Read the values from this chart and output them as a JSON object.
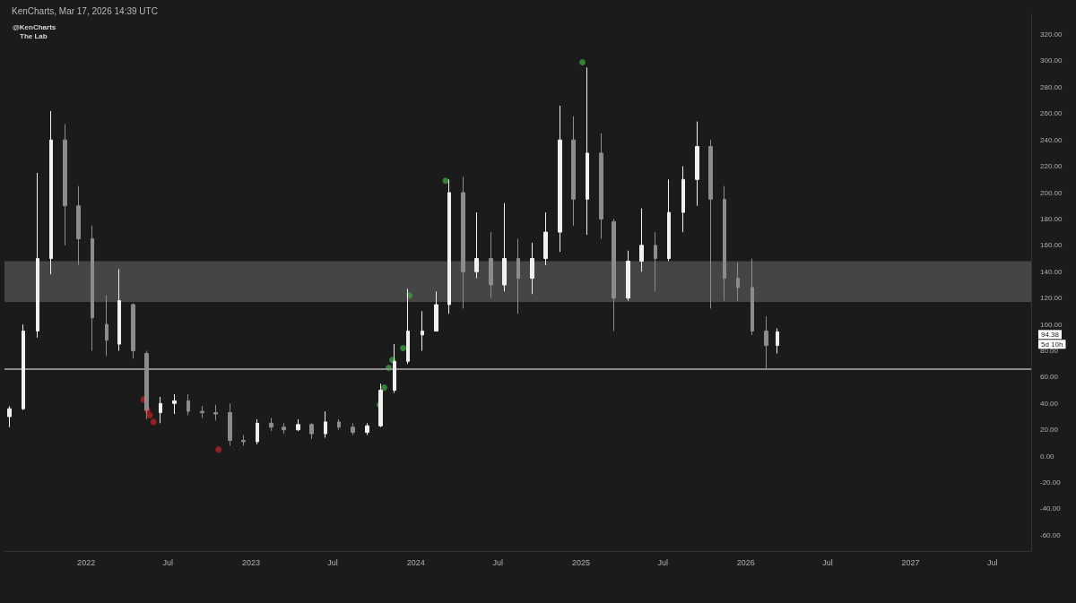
{
  "chart_data": {
    "type": "candlestick",
    "title": "KenCharts, Mar 17, 2026 14:39 UTC",
    "x": [
      "2021-07-15",
      "2021-08-15",
      "2021-09-15",
      "2021-10-15",
      "2021-11-15",
      "2021-12-15",
      "2022-01-15",
      "2022-02-15",
      "2022-03-15",
      "2022-04-15",
      "2022-05-15",
      "2022-06-15",
      "2022-07-15",
      "2022-08-15",
      "2022-09-15",
      "2022-10-15",
      "2022-11-15",
      "2022-12-15",
      "2023-01-15",
      "2023-02-15",
      "2023-03-15",
      "2023-04-15",
      "2023-05-15",
      "2023-06-15",
      "2023-07-15",
      "2023-08-15",
      "2023-09-15",
      "2023-10-15",
      "2023-11-15",
      "2023-12-15",
      "2024-01-15",
      "2024-02-15",
      "2024-03-15",
      "2024-04-15",
      "2024-05-15",
      "2024-06-15",
      "2024-07-15",
      "2024-08-15",
      "2024-09-15",
      "2024-10-15",
      "2024-11-15",
      "2024-12-15",
      "2025-01-15",
      "2025-02-15",
      "2025-03-15",
      "2025-04-15",
      "2025-05-15",
      "2025-06-15",
      "2025-07-15",
      "2025-08-15",
      "2025-09-15",
      "2025-10-15",
      "2025-11-15",
      "2025-12-15",
      "2026-01-15",
      "2026-02-15",
      "2026-03-12"
    ],
    "ohlc": [
      [
        30,
        38,
        22,
        36
      ],
      [
        36,
        100,
        35,
        95
      ],
      [
        95,
        215,
        90,
        150
      ],
      [
        150,
        262,
        138,
        240
      ],
      [
        240,
        252,
        160,
        190
      ],
      [
        190,
        205,
        145,
        165
      ],
      [
        165,
        175,
        80,
        105
      ],
      [
        100,
        122,
        76,
        88
      ],
      [
        85,
        142,
        80,
        118
      ],
      [
        115,
        116,
        74,
        80
      ],
      [
        78,
        80,
        28,
        35
      ],
      [
        33,
        45,
        25,
        40
      ],
      [
        40,
        47,
        32,
        42
      ],
      [
        42,
        47,
        31,
        34
      ],
      [
        34,
        38,
        29,
        33
      ],
      [
        33,
        39,
        27,
        32
      ],
      [
        33,
        40,
        8,
        12
      ],
      [
        12,
        16,
        8,
        11
      ],
      [
        11,
        28,
        9,
        25
      ],
      [
        25,
        29,
        19,
        22
      ],
      [
        22,
        25,
        17,
        20
      ],
      [
        20,
        28,
        19,
        24
      ],
      [
        24,
        25,
        13,
        17
      ],
      [
        17,
        34,
        14,
        26
      ],
      [
        26,
        28,
        20,
        22
      ],
      [
        22,
        25,
        16,
        18
      ],
      [
        18,
        25,
        16,
        23
      ],
      [
        23,
        55,
        22,
        50
      ],
      [
        50,
        85,
        48,
        72
      ],
      [
        72,
        127,
        70,
        95
      ],
      [
        92,
        110,
        80,
        95
      ],
      [
        95,
        125,
        95,
        115
      ],
      [
        115,
        210,
        108,
        200
      ],
      [
        200,
        212,
        112,
        140
      ],
      [
        140,
        185,
        135,
        150
      ],
      [
        150,
        170,
        120,
        130
      ],
      [
        130,
        192,
        125,
        150
      ],
      [
        150,
        165,
        108,
        135
      ],
      [
        135,
        162,
        123,
        150
      ],
      [
        150,
        185,
        145,
        170
      ],
      [
        170,
        266,
        155,
        240
      ],
      [
        240,
        258,
        175,
        195
      ],
      [
        195,
        295,
        168,
        230
      ],
      [
        230,
        245,
        165,
        180
      ],
      [
        178,
        180,
        95,
        120
      ],
      [
        120,
        156,
        118,
        148
      ],
      [
        148,
        188,
        140,
        160
      ],
      [
        160,
        170,
        125,
        150
      ],
      [
        150,
        210,
        148,
        185
      ],
      [
        185,
        220,
        170,
        210
      ],
      [
        210,
        254,
        190,
        235
      ],
      [
        235,
        240,
        112,
        195
      ],
      [
        195,
        205,
        118,
        135
      ],
      [
        135,
        147,
        118,
        128
      ],
      [
        128,
        150,
        92,
        95
      ],
      [
        95,
        106,
        66,
        84
      ],
      [
        84,
        97,
        78,
        94.38
      ]
    ],
    "series": [
      {
        "type": "scatter",
        "color": "#3a9a3f",
        "x": [
          "2023-10-13",
          "2023-10-23",
          "2023-11-02",
          "2023-11-10",
          "2023-12-04",
          "2023-12-18",
          "2024-03-07",
          "2025-01-04"
        ],
        "values": [
          39,
          52,
          67,
          73,
          82,
          122,
          209,
          299
        ]
      },
      {
        "type": "scatter",
        "color": "#b22222",
        "x": [
          "2022-05-08",
          "2022-05-16",
          "2022-05-22",
          "2022-05-30",
          "2022-10-21"
        ],
        "values": [
          43,
          35,
          31,
          26,
          5
        ]
      }
    ],
    "xlim": [
      "2021-07-04",
      "2027-09-25"
    ],
    "xticks": [
      {
        "value": "2022-01-01",
        "label": "2022"
      },
      {
        "value": "2022-07-01",
        "label": "Jul"
      },
      {
        "value": "2023-01-01",
        "label": "2023"
      },
      {
        "value": "2023-07-01",
        "label": "Jul"
      },
      {
        "value": "2024-01-01",
        "label": "2024"
      },
      {
        "value": "2024-07-01",
        "label": "Jul"
      },
      {
        "value": "2025-01-01",
        "label": "2025"
      },
      {
        "value": "2025-07-01",
        "label": "Jul"
      },
      {
        "value": "2026-01-01",
        "label": "2026"
      },
      {
        "value": "2026-07-01",
        "label": "Jul"
      },
      {
        "value": "2027-01-01",
        "label": "2027"
      },
      {
        "value": "2027-07-01",
        "label": "Jul"
      }
    ],
    "ylim": [
      -72,
      336
    ],
    "yticks": [
      {
        "value": -60,
        "label": "-60.00"
      },
      {
        "value": -40,
        "label": "-40.00"
      },
      {
        "value": -20,
        "label": "-20.00"
      },
      {
        "value": 0,
        "label": "0.00"
      },
      {
        "value": 20,
        "label": "20.00"
      },
      {
        "value": 40,
        "label": "40.00"
      },
      {
        "value": 60,
        "label": "60.00"
      },
      {
        "value": 80,
        "label": "80.00"
      },
      {
        "value": 100,
        "label": "100.00"
      },
      {
        "value": 120,
        "label": "120.00"
      },
      {
        "value": 140,
        "label": "140.00"
      },
      {
        "value": 160,
        "label": "160.00"
      },
      {
        "value": 180,
        "label": "180.00"
      },
      {
        "value": 200,
        "label": "200.00"
      },
      {
        "value": 220,
        "label": "220.00"
      },
      {
        "value": 240,
        "label": "240.00"
      },
      {
        "value": 260,
        "label": "260.00"
      },
      {
        "value": 280,
        "label": "280.00"
      },
      {
        "value": 300,
        "label": "300.00"
      },
      {
        "value": 320,
        "label": "320.00"
      }
    ],
    "bands": [
      {
        "axis": "y",
        "from": 117,
        "to": 148,
        "color": "#4a4a4a"
      }
    ],
    "ref_lines": [
      {
        "axis": "y",
        "value": 66,
        "color": "#8a8a8a"
      }
    ],
    "annotations": [
      "@KenCharts",
      "The Lab",
      "94.38",
      "5d 10h"
    ],
    "grid": false
  }
}
